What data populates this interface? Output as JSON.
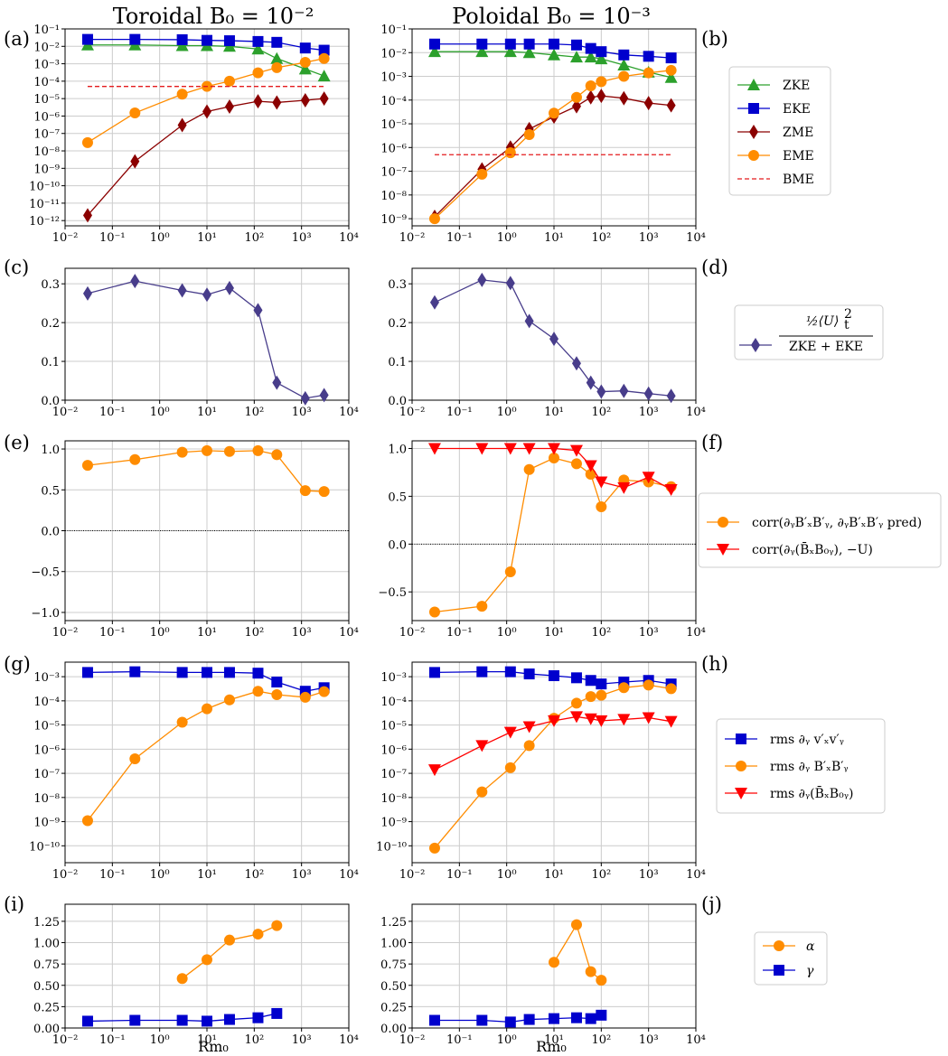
{
  "column_titles": [
    "Toroidal B₀ = 10⁻²",
    "Poloidal B₀ = 10⁻³"
  ],
  "xlabel": "Rm₀",
  "x_ticks": [
    "10⁻²",
    "10⁻¹",
    "10⁰",
    "10¹",
    "10²",
    "10³",
    "10⁴"
  ],
  "colors": {
    "ZKE": "#2ca02c",
    "EKE": "#0000cd",
    "ZME": "#8b0000",
    "EME": "#ff8c00",
    "BME": "#e41a1c",
    "ratio": "#483d8b",
    "corr_red": "#ff0000",
    "gamma": "#0000cd",
    "alpha": "#ff8c00"
  },
  "legends": {
    "row1": [
      "ZKE",
      "EKE",
      "ZME",
      "EME",
      "BME"
    ],
    "row2": [
      "(½⟨U⟩ₜ²)/(ZKE + EKE)"
    ],
    "row3": [
      "corr(∂y BxBy, ∂y BxBy pred)",
      "corr(∂y(Bx B0y), −U)"
    ],
    "row4": [
      "rms ∂y vxvy",
      "rms ∂y BxBy",
      "rms ∂y(Bx B0y)"
    ],
    "row5": [
      "α",
      "γ"
    ]
  },
  "chart_data": [
    {
      "panel": "(a)",
      "type": "line",
      "xscale": "log",
      "yscale": "log",
      "xlim": [
        0.01,
        10000
      ],
      "ylim": [
        5e-13,
        0.1
      ],
      "y_ticks": [
        "10⁻¹²",
        "10⁻¹¹",
        "10⁻¹⁰",
        "10⁻⁹",
        "10⁻⁸",
        "10⁻⁷",
        "10⁻⁶",
        "10⁻⁵",
        "10⁻⁴",
        "10⁻³",
        "10⁻²",
        "10⁻¹"
      ],
      "series": [
        {
          "name": "ZKE",
          "marker": "triangle",
          "color": "#2ca02c",
          "x": [
            0.03,
            0.3,
            3,
            10,
            30,
            120,
            300,
            1200,
            3000
          ],
          "y": [
            0.012,
            0.012,
            0.011,
            0.011,
            0.01,
            0.007,
            0.002,
            0.0005,
            0.0002
          ]
        },
        {
          "name": "EKE",
          "marker": "square",
          "color": "#0000cd",
          "x": [
            0.03,
            0.3,
            3,
            10,
            30,
            120,
            300,
            1200,
            3000
          ],
          "y": [
            0.025,
            0.025,
            0.024,
            0.022,
            0.021,
            0.019,
            0.017,
            0.008,
            0.006
          ]
        },
        {
          "name": "ZME",
          "marker": "diamond",
          "color": "#8b0000",
          "x": [
            0.03,
            0.3,
            3,
            10,
            30,
            120,
            300,
            1200,
            3000
          ],
          "y": [
            2e-12,
            2.5e-09,
            3e-07,
            1.8e-06,
            3.5e-06,
            7e-06,
            6e-06,
            8e-06,
            1e-05
          ]
        },
        {
          "name": "EME",
          "marker": "circle",
          "color": "#ff8c00",
          "x": [
            0.03,
            0.3,
            3,
            10,
            30,
            120,
            300,
            1200,
            3000
          ],
          "y": [
            3e-08,
            1.5e-06,
            1.8e-05,
            5e-05,
            0.0001,
            0.0003,
            0.0006,
            0.0012,
            0.002
          ]
        },
        {
          "name": "BME",
          "marker": "dashed",
          "color": "#e41a1c",
          "x": [
            0.03,
            3000
          ],
          "y": [
            5e-05,
            5e-05
          ]
        }
      ]
    },
    {
      "panel": "(b)",
      "type": "line",
      "xscale": "log",
      "yscale": "log",
      "xlim": [
        0.01,
        10000
      ],
      "ylim": [
        5e-10,
        0.1
      ],
      "y_ticks": [
        "10⁻⁹",
        "10⁻⁸",
        "10⁻⁷",
        "10⁻⁶",
        "10⁻⁵",
        "10⁻⁴",
        "10⁻³",
        "10⁻²",
        "10⁻¹"
      ],
      "series": [
        {
          "name": "ZKE",
          "marker": "triangle",
          "color": "#2ca02c",
          "x": [
            0.03,
            0.3,
            1.2,
            3,
            10,
            30,
            60,
            100,
            300,
            1000,
            3000
          ],
          "y": [
            0.011,
            0.011,
            0.011,
            0.01,
            0.008,
            0.0065,
            0.0065,
            0.0055,
            0.003,
            0.0015,
            0.0009
          ]
        },
        {
          "name": "EKE",
          "marker": "square",
          "color": "#0000cd",
          "x": [
            0.03,
            0.3,
            1.2,
            3,
            10,
            30,
            60,
            100,
            300,
            1000,
            3000
          ],
          "y": [
            0.023,
            0.023,
            0.023,
            0.023,
            0.023,
            0.021,
            0.015,
            0.011,
            0.008,
            0.007,
            0.006
          ]
        },
        {
          "name": "ZME",
          "marker": "diamond",
          "color": "#8b0000",
          "x": [
            0.03,
            0.3,
            1.2,
            3,
            10,
            30,
            60,
            100,
            300,
            1000,
            3000
          ],
          "y": [
            1.2e-09,
            1.2e-07,
            1e-06,
            6e-06,
            2e-05,
            5.5e-05,
            0.00013,
            0.00015,
            0.00012,
            7.5e-05,
            6e-05
          ]
        },
        {
          "name": "EME",
          "marker": "circle",
          "color": "#ff8c00",
          "x": [
            0.03,
            0.3,
            1.2,
            3,
            10,
            30,
            60,
            100,
            300,
            1000,
            3000
          ],
          "y": [
            1e-09,
            7.5e-08,
            6e-07,
            3.5e-06,
            2.8e-05,
            0.00013,
            0.0004,
            0.0006,
            0.001,
            0.0014,
            0.0018
          ]
        },
        {
          "name": "BME",
          "marker": "dashed",
          "color": "#e41a1c",
          "x": [
            0.03,
            3000
          ],
          "y": [
            5e-07,
            5e-07
          ]
        }
      ]
    },
    {
      "panel": "(c)",
      "type": "line",
      "xscale": "log",
      "yscale": "linear",
      "xlim": [
        0.01,
        10000
      ],
      "ylim": [
        0,
        0.34
      ],
      "y_ticks": [
        "0.0",
        "0.1",
        "0.2",
        "0.3"
      ],
      "series": [
        {
          "name": "ratio",
          "marker": "diamond",
          "color": "#483d8b",
          "x": [
            0.03,
            0.3,
            3,
            10,
            30,
            120,
            300,
            1200,
            3000
          ],
          "y": [
            0.275,
            0.307,
            0.283,
            0.272,
            0.289,
            0.232,
            0.045,
            0.005,
            0.013
          ]
        }
      ]
    },
    {
      "panel": "(d)",
      "type": "line",
      "xscale": "log",
      "yscale": "linear",
      "xlim": [
        0.01,
        10000
      ],
      "ylim": [
        0,
        0.34
      ],
      "y_ticks": [
        "0.0",
        "0.1",
        "0.2",
        "0.3"
      ],
      "series": [
        {
          "name": "ratio",
          "marker": "diamond",
          "color": "#483d8b",
          "x": [
            0.03,
            0.3,
            1.2,
            3,
            10,
            30,
            60,
            100,
            300,
            1000,
            3000
          ],
          "y": [
            0.252,
            0.31,
            0.302,
            0.204,
            0.158,
            0.095,
            0.045,
            0.022,
            0.024,
            0.017,
            0.011
          ]
        }
      ]
    },
    {
      "panel": "(e)",
      "type": "line",
      "xscale": "log",
      "yscale": "linear",
      "xlim": [
        0.01,
        10000
      ],
      "ylim": [
        -1.1,
        1.1
      ],
      "y_ticks": [
        "−1.0",
        "−0.5",
        "0.0",
        "0.5",
        "1.0"
      ],
      "series": [
        {
          "name": "corr_BB",
          "marker": "circle",
          "color": "#ff8c00",
          "x": [
            0.03,
            0.3,
            3,
            10,
            30,
            120,
            300,
            1200,
            3000
          ],
          "y": [
            0.8,
            0.87,
            0.96,
            0.98,
            0.97,
            0.98,
            0.93,
            0.49,
            0.48
          ]
        }
      ]
    },
    {
      "panel": "(f)",
      "type": "line",
      "xscale": "log",
      "yscale": "linear",
      "xlim": [
        0.01,
        10000
      ],
      "ylim": [
        -0.8,
        1.08
      ],
      "y_ticks": [
        "−0.5",
        "0.0",
        "0.5",
        "1.0"
      ],
      "series": [
        {
          "name": "corr_BB",
          "marker": "circle",
          "color": "#ff8c00",
          "x": [
            0.03,
            0.3,
            1.2,
            3,
            10,
            30,
            60,
            100,
            300,
            1000,
            3000
          ],
          "y": [
            -0.71,
            -0.65,
            -0.29,
            0.78,
            0.9,
            0.84,
            0.73,
            0.39,
            0.67,
            0.65,
            0.6
          ]
        },
        {
          "name": "corr_B0",
          "marker": "tri_down",
          "color": "#ff0000",
          "x": [
            0.03,
            0.3,
            1.2,
            3,
            10,
            30,
            60,
            100,
            300,
            1000,
            3000
          ],
          "y": [
            1.0,
            1.0,
            1.0,
            1.0,
            1.0,
            0.98,
            0.82,
            0.65,
            0.59,
            0.7,
            0.57
          ]
        }
      ]
    },
    {
      "panel": "(g)",
      "type": "line",
      "xscale": "log",
      "yscale": "log",
      "xlim": [
        0.01,
        10000
      ],
      "ylim": [
        2e-11,
        0.004
      ],
      "y_ticks": [
        "10⁻¹⁰",
        "10⁻⁹",
        "10⁻⁸",
        "10⁻⁷",
        "10⁻⁶",
        "10⁻⁵",
        "10⁻⁴",
        "10⁻³"
      ],
      "series": [
        {
          "name": "rms_vv",
          "marker": "square",
          "color": "#0000cd",
          "x": [
            0.03,
            0.3,
            3,
            10,
            30,
            120,
            300,
            1200,
            3000
          ],
          "y": [
            0.0015,
            0.0016,
            0.0015,
            0.0015,
            0.0015,
            0.0014,
            0.0006,
            0.00025,
            0.00035
          ]
        },
        {
          "name": "rms_BB",
          "marker": "circle",
          "color": "#ff8c00",
          "x": [
            0.03,
            0.3,
            3,
            10,
            30,
            120,
            300,
            1200,
            3000
          ],
          "y": [
            1.1e-09,
            4e-07,
            1.3e-05,
            4.7e-05,
            0.00011,
            0.00025,
            0.00018,
            0.00014,
            0.00024
          ]
        }
      ]
    },
    {
      "panel": "(h)",
      "type": "line",
      "xscale": "log",
      "yscale": "log",
      "xlim": [
        0.01,
        10000
      ],
      "ylim": [
        2e-11,
        0.004
      ],
      "y_ticks": [
        "10⁻¹⁰",
        "10⁻⁹",
        "10⁻⁸",
        "10⁻⁷",
        "10⁻⁶",
        "10⁻⁵",
        "10⁻⁴",
        "10⁻³"
      ],
      "series": [
        {
          "name": "rms_vv",
          "marker": "square",
          "color": "#0000cd",
          "x": [
            0.03,
            0.3,
            1.2,
            3,
            10,
            30,
            60,
            100,
            300,
            1000,
            3000
          ],
          "y": [
            0.0015,
            0.0016,
            0.0016,
            0.0013,
            0.0011,
            0.0009,
            0.0007,
            0.0005,
            0.0006,
            0.0007,
            0.0005
          ]
        },
        {
          "name": "rms_BB",
          "marker": "circle",
          "color": "#ff8c00",
          "x": [
            0.03,
            0.3,
            1.2,
            3,
            10,
            30,
            60,
            100,
            300,
            1000,
            3000
          ],
          "y": [
            8e-11,
            1.7e-08,
            1.7e-07,
            1.4e-06,
            1.9e-05,
            8e-05,
            0.00015,
            0.00017,
            0.00035,
            0.00045,
            0.00032
          ]
        },
        {
          "name": "rms_B0",
          "marker": "tri_down",
          "color": "#ff0000",
          "x": [
            0.03,
            0.3,
            1.2,
            3,
            10,
            30,
            60,
            100,
            300,
            1000,
            3000
          ],
          "y": [
            1.4e-07,
            1.4e-06,
            5e-06,
            8.5e-06,
            1.5e-05,
            2.2e-05,
            1.8e-05,
            1.5e-05,
            1.7e-05,
            2e-05,
            1.4e-05
          ]
        }
      ]
    },
    {
      "panel": "(i)",
      "type": "line",
      "xscale": "log",
      "yscale": "linear",
      "xlim": [
        0.01,
        10000
      ],
      "ylim": [
        0,
        1.45
      ],
      "y_ticks": [
        "0.00",
        "0.25",
        "0.50",
        "0.75",
        "1.00",
        "1.25"
      ],
      "series": [
        {
          "name": "alpha",
          "marker": "circle",
          "color": "#ff8c00",
          "x": [
            3,
            10,
            30,
            120,
            300
          ],
          "y": [
            0.58,
            0.8,
            1.03,
            1.1,
            1.2
          ]
        },
        {
          "name": "gamma",
          "marker": "square",
          "color": "#0000cd",
          "x": [
            0.03,
            0.3,
            3,
            10,
            30,
            120,
            300
          ],
          "y": [
            0.08,
            0.09,
            0.09,
            0.08,
            0.1,
            0.12,
            0.17
          ]
        }
      ]
    },
    {
      "panel": "(j)",
      "type": "line",
      "xscale": "log",
      "yscale": "linear",
      "xlim": [
        0.01,
        10000
      ],
      "ylim": [
        0,
        1.45
      ],
      "y_ticks": [
        "0.00",
        "0.25",
        "0.50",
        "0.75",
        "1.00",
        "1.25"
      ],
      "series": [
        {
          "name": "alpha",
          "marker": "circle",
          "color": "#ff8c00",
          "x": [
            10,
            30,
            60,
            100
          ],
          "y": [
            0.77,
            1.21,
            0.66,
            0.56
          ]
        },
        {
          "name": "gamma",
          "marker": "square",
          "color": "#0000cd",
          "x": [
            0.03,
            0.3,
            1.2,
            3,
            10,
            30,
            60,
            100
          ],
          "y": [
            0.09,
            0.09,
            0.07,
            0.1,
            0.11,
            0.12,
            0.11,
            0.15
          ]
        }
      ]
    }
  ]
}
